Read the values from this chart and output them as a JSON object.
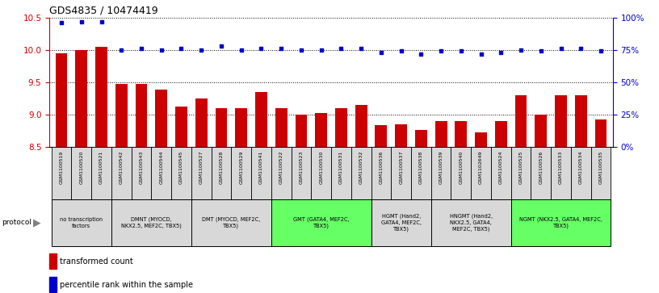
{
  "title": "GDS4835 / 10474419",
  "samples": [
    "GSM1100519",
    "GSM1100520",
    "GSM1100521",
    "GSM1100542",
    "GSM1100543",
    "GSM1100544",
    "GSM1100545",
    "GSM1100527",
    "GSM1100528",
    "GSM1100529",
    "GSM1100541",
    "GSM1100522",
    "GSM1100523",
    "GSM1100530",
    "GSM1100531",
    "GSM1100532",
    "GSM1100536",
    "GSM1100537",
    "GSM1100538",
    "GSM1100539",
    "GSM1100540",
    "GSM1102649",
    "GSM1100524",
    "GSM1100525",
    "GSM1100526",
    "GSM1100533",
    "GSM1100534",
    "GSM1100535"
  ],
  "bar_values": [
    9.95,
    10.0,
    10.05,
    9.47,
    9.47,
    9.38,
    9.12,
    9.25,
    9.1,
    9.09,
    9.35,
    9.1,
    9.0,
    9.02,
    9.1,
    9.15,
    8.83,
    8.85,
    8.76,
    8.9,
    8.9,
    8.72,
    8.9,
    9.3,
    9.0,
    9.3,
    9.3,
    8.92
  ],
  "percentile_values": [
    96,
    97,
    97,
    75,
    76,
    75,
    76,
    75,
    78,
    75,
    76,
    76,
    75,
    75,
    76,
    76,
    73,
    74,
    72,
    74,
    74,
    72,
    73,
    75,
    74,
    76,
    76,
    74
  ],
  "ylim_left": [
    8.5,
    10.5
  ],
  "ylim_right": [
    0,
    100
  ],
  "yticks_left": [
    8.5,
    9.0,
    9.5,
    10.0,
    10.5
  ],
  "yticks_right": [
    0,
    25,
    50,
    75,
    100
  ],
  "bar_color": "#cc0000",
  "dot_color": "#0000cc",
  "grid_color": "#000000",
  "protocol_groups": [
    {
      "label": "no transcription\nfactors",
      "start": 0,
      "end": 3,
      "color": "#d8d8d8"
    },
    {
      "label": "DMNT (MYOCD,\nNKX2.5, MEF2C, TBX5)",
      "start": 3,
      "end": 7,
      "color": "#d8d8d8"
    },
    {
      "label": "DMT (MYOCD, MEF2C,\nTBX5)",
      "start": 7,
      "end": 11,
      "color": "#d8d8d8"
    },
    {
      "label": "GMT (GATA4, MEF2C,\nTBX5)",
      "start": 11,
      "end": 16,
      "color": "#66ff66"
    },
    {
      "label": "HGMT (Hand2,\nGATA4, MEF2C,\nTBX5)",
      "start": 16,
      "end": 19,
      "color": "#d8d8d8"
    },
    {
      "label": "HNGMT (Hand2,\nNKX2.5, GATA4,\nMEF2C, TBX5)",
      "start": 19,
      "end": 23,
      "color": "#d8d8d8"
    },
    {
      "label": "NGMT (NKX2.5, GATA4, MEF2C,\nTBX5)",
      "start": 23,
      "end": 28,
      "color": "#66ff66"
    }
  ],
  "left_axis_color": "#cc0000",
  "right_axis_color": "#0000cc",
  "background_color": "#ffffff",
  "xtick_box_color": "#d8d8d8"
}
